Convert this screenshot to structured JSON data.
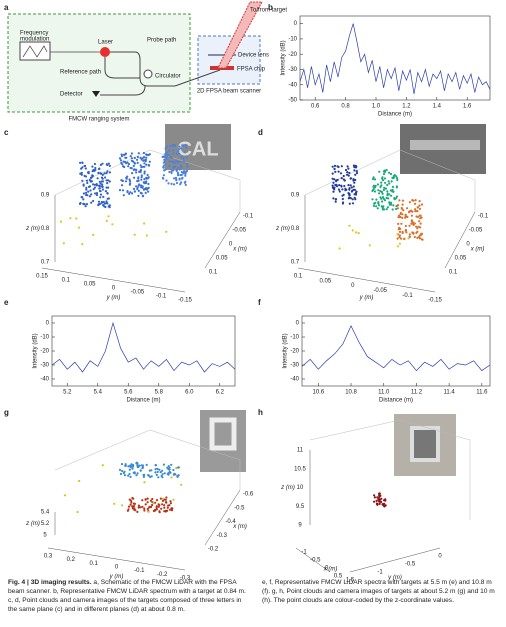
{
  "panels": [
    "a",
    "b",
    "c",
    "d",
    "e",
    "f",
    "g",
    "h"
  ],
  "diagram": {
    "frequency_modulation": [
      "Frequency",
      "modulation"
    ],
    "laser": "Laser",
    "probe_path": "Probe path",
    "reference_path": "Reference path",
    "circulator": "Circulator",
    "detector": "Detector",
    "ranging_system": "FMCW ranging system",
    "target": "To/from target",
    "device_lens": "Device lens",
    "fpsa_chip": "FPSA chip",
    "beam_scanner": "2D FPSA beam scanner"
  },
  "chart_data": [
    {
      "type": "line",
      "color": "#2b3fae",
      "xlabel": "Distance (m)",
      "ylabel": "Intensity (dB)",
      "x": [
        0.5,
        0.525,
        0.55,
        0.575,
        0.6,
        0.625,
        0.65,
        0.675,
        0.7,
        0.725,
        0.75,
        0.775,
        0.8,
        0.825,
        0.85,
        0.875,
        0.9,
        0.925,
        0.95,
        0.975,
        1.0,
        1.025,
        1.05,
        1.075,
        1.1,
        1.125,
        1.15,
        1.175,
        1.2,
        1.225,
        1.25,
        1.275,
        1.3,
        1.325,
        1.35,
        1.375,
        1.4,
        1.425,
        1.45,
        1.475,
        1.5,
        1.525,
        1.55,
        1.575,
        1.6,
        1.625,
        1.65,
        1.675,
        1.7,
        1.725,
        1.75
      ],
      "values": [
        -38,
        -30,
        -42,
        -28,
        -40,
        -33,
        -45,
        -27,
        -38,
        -25,
        -35,
        -22,
        -18,
        -8,
        0,
        -12,
        -25,
        -20,
        -32,
        -24,
        -38,
        -28,
        -42,
        -30,
        -36,
        -29,
        -44,
        -31,
        -37,
        -30,
        -46,
        -32,
        -38,
        -30,
        -41,
        -33,
        -36,
        -31,
        -44,
        -33,
        -38,
        -32,
        -43,
        -34,
        -39,
        -33,
        -45,
        -35,
        -40,
        -38,
        -43
      ],
      "xlim": [
        0.5,
        1.75
      ],
      "ylim": [
        -50,
        5
      ],
      "xticks": [
        0.6,
        0.8,
        {
          "value": 1,
          "label": "1.0"
        },
        1.2,
        1.4,
        1.6
      ],
      "yticks": [
        0,
        -10,
        -20,
        -30,
        -40,
        -50
      ]
    },
    {
      "type": "line",
      "color": "#2b3fae",
      "xlabel": "Distance (m)",
      "ylabel": "Intensity (dB)",
      "x": [
        5.1,
        5.15,
        5.2,
        5.25,
        5.3,
        5.35,
        5.4,
        5.45,
        5.5,
        5.55,
        5.6,
        5.65,
        5.7,
        5.75,
        5.8,
        5.85,
        5.9,
        5.95,
        6.0,
        6.05,
        6.1,
        6.15,
        6.2,
        6.25,
        6.3
      ],
      "values": [
        -30,
        -26,
        -33,
        -28,
        -35,
        -27,
        -31,
        -20,
        0,
        -18,
        -28,
        -25,
        -33,
        -27,
        -31,
        -26,
        -34,
        -28,
        -30,
        -27,
        -35,
        -29,
        -31,
        -28,
        -33
      ],
      "xlim": [
        5.1,
        6.3
      ],
      "ylim": [
        -45,
        5
      ],
      "xticks": [
        5.2,
        5.4,
        5.6,
        5.8,
        {
          "value": 6,
          "label": "6.0"
        },
        6.2
      ],
      "yticks": [
        0,
        -10,
        -20,
        -30,
        -40
      ]
    },
    {
      "type": "line",
      "color": "#2b3fae",
      "xlabel": "Distance (m)",
      "ylabel": "Intensity (dB)",
      "x": [
        10.5,
        10.55,
        10.6,
        10.65,
        10.7,
        10.75,
        10.8,
        10.85,
        10.9,
        10.95,
        11.0,
        11.05,
        11.1,
        11.15,
        11.2,
        11.25,
        11.3,
        11.35,
        11.4,
        11.45,
        11.5,
        11.55,
        11.6,
        11.65
      ],
      "values": [
        -31,
        -26,
        -33,
        -27,
        -22,
        -15,
        -2,
        -14,
        -24,
        -28,
        -32,
        -26,
        -30,
        -27,
        -34,
        -28,
        -31,
        -26,
        -33,
        -29,
        -30,
        -27,
        -34,
        -30
      ],
      "xlim": [
        10.5,
        11.65
      ],
      "ylim": [
        -45,
        5
      ],
      "xticks": [
        10.6,
        10.8,
        {
          "value": 11,
          "label": "11.0"
        },
        11.2,
        11.4,
        11.6
      ],
      "yticks": [
        0,
        -10,
        -20,
        -30,
        -40
      ]
    }
  ],
  "clouds": [
    {
      "z_label": "z (m)",
      "x_label": "x (m)",
      "y_label": "y (m)",
      "zticks": [
        "0.9",
        "0.8",
        "0.7"
      ],
      "xticks": [
        "0.1",
        "0.05",
        "0",
        "-0.05",
        "-0.1"
      ],
      "yticks": [
        "0.15",
        "0.1",
        "0.05",
        "0",
        "-0.05",
        "-0.1",
        "-0.15"
      ]
    },
    {
      "z_label": "z (m)",
      "x_label": "x (m)",
      "y_label": "y (m)",
      "zticks": [
        "0.9",
        "0.8",
        "0.7"
      ],
      "xticks": [
        "0.1",
        "0.05",
        "0",
        "-0.05",
        "-0.1"
      ],
      "yticks": [
        "0.1",
        "0.05",
        "0",
        "-0.05",
        "-0.1",
        "-0.15"
      ]
    },
    {
      "z_label": "z (m)",
      "x_label": "x (m)",
      "y_label": "y (m)",
      "zticks": [
        "5.4",
        "5.2",
        "5"
      ],
      "xticks": [
        "-0.2",
        "-0.3",
        "-0.4",
        "-0.5",
        "-0.6"
      ],
      "yticks": [
        "0.3",
        "0.2",
        "0.1",
        "0",
        "-0.1",
        "-0.2",
        "-0.3"
      ]
    },
    {
      "z_label": "z (m)",
      "x_label": "x (m)",
      "y_label": "y (m)",
      "zticks": [
        "11",
        "10.5",
        "10",
        "9.5",
        "9"
      ],
      "xticks": [
        "-1",
        "-0.5",
        "0",
        "0.5"
      ],
      "yticks": [
        "1.5",
        "-1",
        "-0.5",
        "0"
      ]
    }
  ],
  "caption": {
    "lead": "Fig. 4 | 3D imaging results.",
    "left": "a, Schematic of the FMCW LiDAR with the FPSA beam scanner. b, Representative FMCW LiDAR spectrum with a target at 0.84 m. c, d, Point clouds and camera images of the targets composed of three letters in the same plane (c) and in different planes (d) at about 0.8 m.",
    "right": "e, f, Representative FMCW LiDAR spectra with targets at 5.5 m (e) and 10.8 m (f). g, h, Point clouds and camera images of targets at about 5.2 m (g) and 10 m (h). The point clouds are colour-coded by the z-coordinate values."
  }
}
